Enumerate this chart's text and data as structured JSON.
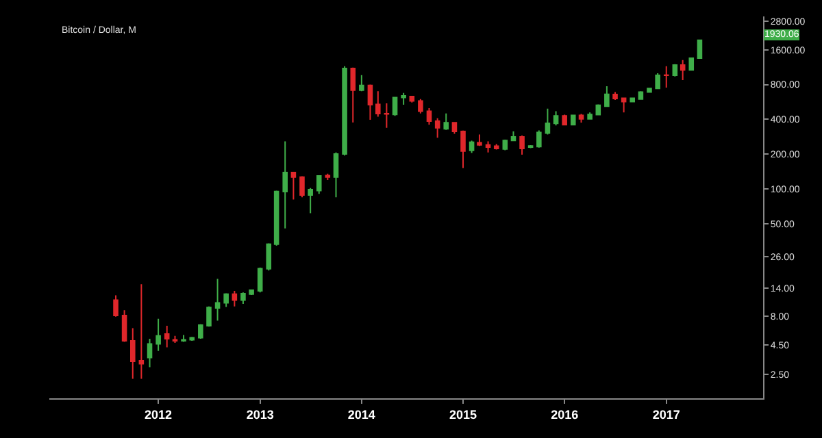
{
  "chart_data": {
    "type": "candlestick",
    "title": "Bitcoin / Dollar, M",
    "x": [
      "2011-08",
      "2011-09",
      "2011-10",
      "2011-11",
      "2011-12",
      "2012-01",
      "2012-02",
      "2012-03",
      "2012-04",
      "2012-05",
      "2012-06",
      "2012-07",
      "2012-08",
      "2012-09",
      "2012-10",
      "2012-11",
      "2012-12",
      "2013-01",
      "2013-02",
      "2013-03",
      "2013-04",
      "2013-05",
      "2013-06",
      "2013-07",
      "2013-08",
      "2013-09",
      "2013-10",
      "2013-11",
      "2013-12",
      "2014-01",
      "2014-02",
      "2014-03",
      "2014-04",
      "2014-05",
      "2014-06",
      "2014-07",
      "2014-08",
      "2014-09",
      "2014-10",
      "2014-11",
      "2014-12",
      "2015-01",
      "2015-02",
      "2015-03",
      "2015-04",
      "2015-05",
      "2015-06",
      "2015-07",
      "2015-08",
      "2015-09",
      "2015-10",
      "2015-11",
      "2015-12",
      "2016-01",
      "2016-02",
      "2016-03",
      "2016-04",
      "2016-05",
      "2016-06",
      "2016-07",
      "2016-08",
      "2016-09",
      "2016-10",
      "2016-11",
      "2016-12",
      "2017-01",
      "2017-02",
      "2017-03",
      "2017-04",
      "2017-05"
    ],
    "ohlc": [
      [
        11.0,
        12.1,
        7.9,
        8.1
      ],
      [
        8.1,
        9.0,
        4.8,
        4.9
      ],
      [
        4.9,
        6.3,
        2.3,
        3.25
      ],
      [
        3.3,
        15.1,
        2.3,
        3.1
      ],
      [
        3.5,
        5.1,
        2.9,
        4.6
      ],
      [
        4.6,
        7.6,
        4.0,
        5.4
      ],
      [
        5.6,
        6.6,
        4.3,
        5.1
      ],
      [
        5.0,
        5.4,
        4.7,
        4.9
      ],
      [
        4.9,
        5.5,
        4.8,
        5.0
      ],
      [
        5.0,
        5.3,
        4.9,
        5.2
      ],
      [
        5.2,
        6.8,
        5.1,
        6.7
      ],
      [
        6.6,
        9.7,
        6.5,
        9.5
      ],
      [
        9.4,
        16.8,
        7.3,
        10.4
      ],
      [
        10.4,
        12.6,
        9.6,
        12.4
      ],
      [
        12.4,
        13.2,
        9.7,
        11.0
      ],
      [
        11.0,
        12.8,
        10.2,
        12.5
      ],
      [
        12.4,
        13.6,
        12.2,
        13.4
      ],
      [
        13.2,
        21,
        12.8,
        20.6
      ],
      [
        20.5,
        34,
        19.8,
        33.5
      ],
      [
        33.5,
        97,
        32.5,
        95.5
      ],
      [
        95,
        259,
        45.7,
        139
      ],
      [
        139,
        141,
        81.4,
        127
      ],
      [
        127,
        129,
        85,
        89
      ],
      [
        89,
        102,
        62,
        99
      ],
      [
        97,
        132,
        91,
        130
      ],
      [
        131,
        136,
        120,
        127
      ],
      [
        127,
        207,
        85,
        201
      ],
      [
        201,
        1150,
        195,
        1100
      ],
      [
        1100,
        1120,
        376,
        716
      ],
      [
        716,
        964,
        700,
        786
      ],
      [
        786,
        800,
        397,
        535
      ],
      [
        540,
        700,
        422,
        448
      ],
      [
        448,
        550,
        338,
        445
      ],
      [
        441,
        625,
        430,
        618
      ],
      [
        618,
        677,
        535,
        640
      ],
      [
        630,
        640,
        560,
        577
      ],
      [
        577,
        600,
        450,
        470
      ],
      [
        470,
        500,
        360,
        386
      ],
      [
        386,
        410,
        278,
        338
      ],
      [
        332,
        450,
        325,
        375
      ],
      [
        375,
        380,
        300,
        315
      ],
      [
        315,
        320,
        152,
        213
      ],
      [
        216,
        262,
        205,
        254
      ],
      [
        252,
        296,
        236,
        241
      ],
      [
        241,
        259,
        207,
        230
      ],
      [
        235,
        245,
        220,
        224
      ],
      [
        222,
        268,
        217,
        263
      ],
      [
        263,
        315,
        260,
        283
      ],
      [
        283,
        290,
        198,
        224
      ],
      [
        230,
        240,
        226,
        236
      ],
      [
        233,
        322,
        228,
        309
      ],
      [
        305,
        495,
        296,
        370
      ],
      [
        370,
        470,
        355,
        430
      ],
      [
        430,
        440,
        355,
        360
      ],
      [
        360,
        440,
        360,
        433
      ],
      [
        433,
        445,
        375,
        404
      ],
      [
        404,
        460,
        400,
        441
      ],
      [
        440,
        540,
        435,
        530
      ],
      [
        520,
        773,
        515,
        660
      ],
      [
        658,
        690,
        590,
        605
      ],
      [
        610,
        610,
        460,
        570
      ],
      [
        570,
        615,
        570,
        610
      ],
      [
        600,
        700,
        600,
        690
      ],
      [
        690,
        750,
        685,
        740
      ],
      [
        740,
        1000,
        730,
        960
      ],
      [
        965,
        1150,
        752,
        960
      ],
      [
        960,
        1200,
        940,
        1180
      ],
      [
        1180,
        1300,
        875,
        1070
      ],
      [
        1070,
        1370,
        1060,
        1350
      ],
      [
        1350,
        1930.06,
        1341,
        1930.06
      ]
    ],
    "colors": [
      "#e0272b",
      "#e0272b",
      "#e0272b",
      "#e0272b",
      "#3fae49",
      "#3fae49",
      "#e0272b",
      "#e0272b",
      "#3fae49",
      "#3fae49",
      "#3fae49",
      "#3fae49",
      "#3fae49",
      "#3fae49",
      "#e0272b",
      "#3fae49",
      "#3fae49",
      "#3fae49",
      "#3fae49",
      "#3fae49",
      "#3fae49",
      "#e0272b",
      "#e0272b",
      "#3fae49",
      "#3fae49",
      "#e0272b",
      "#3fae49",
      "#3fae49",
      "#e0272b",
      "#3fae49",
      "#e0272b",
      "#e0272b",
      "#e0272b",
      "#3fae49",
      "#3fae49",
      "#e0272b",
      "#e0272b",
      "#e0272b",
      "#e0272b",
      "#3fae49",
      "#e0272b",
      "#e0272b",
      "#3fae49",
      "#e0272b",
      "#e0272b",
      "#e0272b",
      "#3fae49",
      "#3fae49",
      "#e0272b",
      "#3fae49",
      "#3fae49",
      "#3fae49",
      "#3fae49",
      "#e0272b",
      "#3fae49",
      "#e0272b",
      "#3fae49",
      "#3fae49",
      "#3fae49",
      "#e0272b",
      "#e0272b",
      "#3fae49",
      "#3fae49",
      "#3fae49",
      "#3fae49",
      "#e0272b",
      "#3fae49",
      "#e0272b",
      "#3fae49",
      "#3fae49"
    ],
    "xlim": [
      "2010-12-05",
      "2017-12-15"
    ],
    "xticks": [
      "2012",
      "2013",
      "2014",
      "2015",
      "2016",
      "2017"
    ],
    "log": true,
    "ylim": [
      1.56,
      3100
    ],
    "yticks": [
      {
        "value": 2.5,
        "label": "2.50"
      },
      {
        "value": 4.5,
        "label": "4.50"
      },
      {
        "value": 8,
        "label": "8.00"
      },
      {
        "value": 14,
        "label": "14.00"
      },
      {
        "value": 26,
        "label": "26.00"
      },
      {
        "value": 50,
        "label": "50.00"
      },
      {
        "value": 100,
        "label": "100.00"
      },
      {
        "value": 200,
        "label": "200.00"
      },
      {
        "value": 400,
        "label": "400.00"
      },
      {
        "value": 800,
        "label": "800.00"
      },
      {
        "value": 1600,
        "label": "1600.00"
      },
      {
        "value": 2800,
        "label": "2800.00"
      }
    ],
    "annotations": [
      "1930.06"
    ],
    "grid": false
  }
}
